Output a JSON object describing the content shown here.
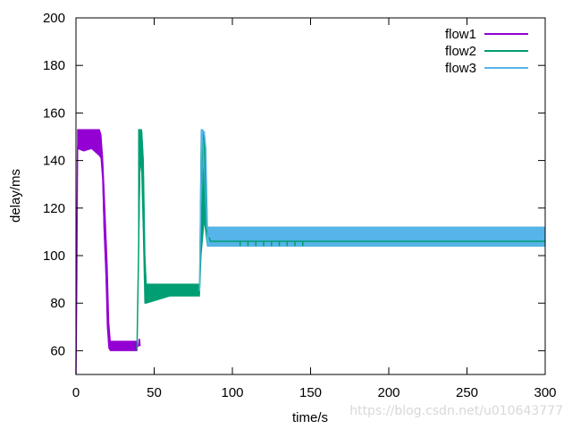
{
  "chart_data": {
    "type": "line",
    "title": "",
    "xlabel": "time/s",
    "ylabel": "delay/ms",
    "xlim": [
      0,
      300
    ],
    "ylim": [
      50,
      200
    ],
    "x_ticks": [
      "0",
      "50",
      "100",
      "150",
      "200",
      "250",
      "300"
    ],
    "y_ticks": [
      "60",
      "80",
      "100",
      "120",
      "140",
      "160",
      "180",
      "200"
    ],
    "grid": false,
    "legend_position": "top-right",
    "series": [
      {
        "name": "flow1",
        "color": "#9400d3",
        "points": [
          [
            0,
            50
          ],
          [
            0.5,
            90
          ],
          [
            1,
            145
          ],
          [
            2,
            151
          ],
          [
            15,
            151
          ],
          [
            16,
            147
          ],
          [
            17,
            140
          ],
          [
            18,
            112
          ],
          [
            20,
            80
          ],
          [
            21,
            62
          ],
          [
            40,
            62
          ],
          [
            40.5,
            65
          ],
          [
            41,
            62
          ]
        ],
        "band": [
          [
            1,
            145,
            153
          ],
          [
            5,
            144,
            153
          ],
          [
            10,
            145,
            153
          ],
          [
            15,
            142,
            153
          ],
          [
            16,
            141,
            151
          ],
          [
            17,
            132,
            142
          ],
          [
            18,
            110,
            128
          ],
          [
            19,
            95,
            112
          ],
          [
            20,
            70,
            96
          ],
          [
            21,
            61,
            72
          ],
          [
            22,
            60,
            64
          ],
          [
            39,
            60,
            64
          ]
        ]
      },
      {
        "name": "flow2",
        "color": "#009e73",
        "points": [
          [
            39,
            60
          ],
          [
            40,
            100
          ],
          [
            41,
            152
          ],
          [
            42,
            152
          ],
          [
            43,
            140
          ],
          [
            44,
            100
          ],
          [
            45,
            85
          ],
          [
            46,
            85
          ],
          [
            79,
            85
          ],
          [
            79.5,
            100
          ],
          [
            80,
            130
          ],
          [
            81,
            152
          ],
          [
            82,
            148
          ],
          [
            83,
            128
          ],
          [
            84,
            110
          ],
          [
            86,
            106
          ],
          [
            300,
            106
          ]
        ],
        "band": [
          [
            40,
            100,
            153
          ],
          [
            41,
            140,
            153
          ],
          [
            42,
            135,
            153
          ],
          [
            43,
            110,
            140
          ],
          [
            44,
            80,
            100
          ],
          [
            45,
            80,
            88
          ],
          [
            60,
            83,
            88
          ],
          [
            79,
            83,
            88
          ],
          [
            80,
            100,
            153
          ],
          [
            82,
            115,
            150
          ],
          [
            84,
            104,
            112
          ],
          [
            300,
            104,
            112
          ]
        ],
        "spikes_x": [
          105,
          110,
          115,
          120,
          125,
          130,
          135,
          140,
          145
        ]
      },
      {
        "name": "flow3",
        "color": "#56b4e9",
        "points": [
          [
            79,
            85
          ],
          [
            79.5,
            110
          ],
          [
            80,
            140
          ],
          [
            81,
            152
          ],
          [
            82,
            152
          ],
          [
            83,
            145
          ],
          [
            84,
            112
          ],
          [
            85,
            108
          ],
          [
            300,
            108
          ]
        ],
        "band": [
          [
            80,
            120,
            153
          ],
          [
            81,
            140,
            153
          ],
          [
            82,
            135,
            152
          ],
          [
            83,
            120,
            145
          ],
          [
            84,
            104,
            112
          ],
          [
            300,
            104,
            112
          ]
        ]
      }
    ]
  },
  "watermark": "https://blog.csdn.net/u010643777"
}
